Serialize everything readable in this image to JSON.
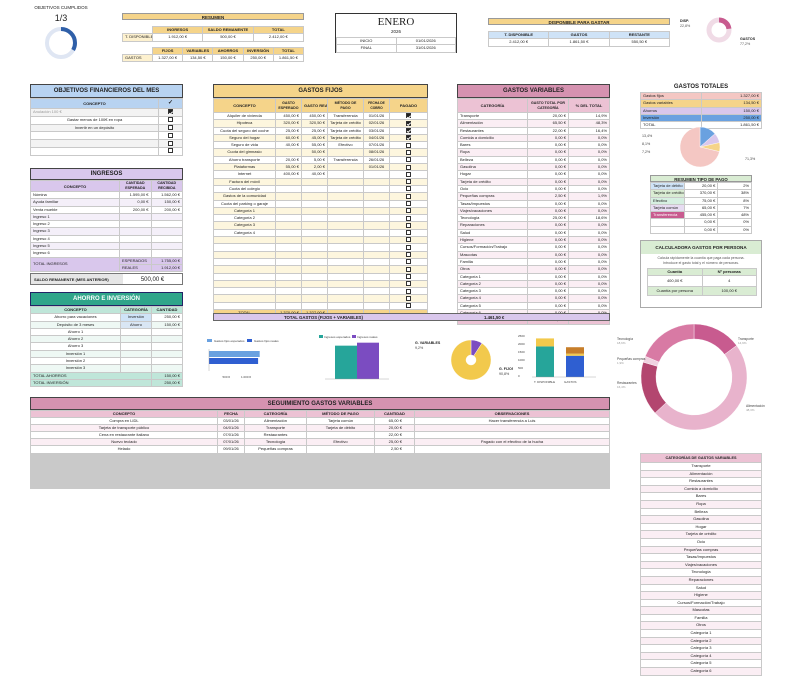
{
  "objetivos_cumplidos": {
    "label": "OBJETIVOS CUMPLIDOS",
    "value": "1/3",
    "ratio": 0.333
  },
  "resumen": {
    "title": "RESUMEN",
    "headers": [
      "INGRESOS",
      "SALDO REMANENTE",
      "TOTAL"
    ],
    "row_label": "T. DISPONIBLE",
    "row": [
      "1.912,00 €",
      "500,00 €",
      "2.412,00 €"
    ],
    "headers2": [
      "FIJOS",
      "VARIABLES",
      "AHORROS",
      "INVERSIÓN",
      "TOTAL"
    ],
    "row2_label": "GASTOS",
    "row2": [
      "1.327,00 €",
      "134,50 €",
      "150,00 €",
      "250,00 €",
      "1.861,50 €"
    ]
  },
  "mes": {
    "name": "ENERO",
    "year": "2026",
    "inicio_label": "INICIO",
    "inicio": "01/01/2026",
    "final_label": "FINAL",
    "final": "31/01/2026"
  },
  "disponible": {
    "title": "DISPONIBLE PARA GASTAR",
    "headers": [
      "T. DISPONIBLE",
      "GASTOS",
      "RESTANTE"
    ],
    "row": [
      "2.412,00 €",
      "1.861,50 €",
      "550,50 €"
    ]
  },
  "donut_small": {
    "disp_label": "DISP.",
    "disp_pct": "22,8%",
    "gastos_label": "GASTOS",
    "gastos_pct": "77,2%",
    "disp_frac": 0.228
  },
  "objetivos": {
    "title": "OBJETIVOS FINANCIEROS DEL MES",
    "col": "CONCEPTO",
    "check_header": "✓",
    "items": [
      {
        "text": "Anulación 100 €",
        "done": true,
        "muted": true
      },
      {
        "text": "Gastar menos de 100€ en ropa",
        "done": false
      },
      {
        "text": "Invertir en un depósito",
        "done": false
      },
      {
        "text": "",
        "done": false
      },
      {
        "text": "",
        "done": false
      },
      {
        "text": "",
        "done": false
      }
    ]
  },
  "ingresos": {
    "title": "INGRESOS",
    "headers": [
      "CONCEPTO",
      "CANTIDAD ESPERADA",
      "CANTIDAD RECIBIDA"
    ],
    "rows": [
      [
        "Nómina",
        "1.595,00 €",
        "1.562,00 €"
      ],
      [
        "Ayuda familiar",
        "0,00 €",
        "150,00 €"
      ],
      [
        "Venta mueble",
        "200,00 €",
        "200,00 €"
      ],
      [
        "Ingreso 1",
        "",
        ""
      ],
      [
        "Ingreso 2",
        "",
        ""
      ],
      [
        "Ingreso 3",
        "",
        ""
      ],
      [
        "Ingreso 4",
        "",
        ""
      ],
      [
        "Ingreso 5",
        "",
        ""
      ],
      [
        "Ingreso 6",
        "",
        ""
      ]
    ],
    "total_label": "TOTAL INGRESOS",
    "esperados_label": "ESPERADOS",
    "esperados": "1.755,00 €",
    "reales_label": "REALES",
    "reales": "1.912,00 €"
  },
  "saldo_remanente": {
    "label": "SALDO REMANENTE (MES ANTERIOR)",
    "value": "500,00 €"
  },
  "ahorro": {
    "title": "AHORRO E INVERSIÓN",
    "headers": [
      "CONCEPTO",
      "CATEGORÍA",
      "CANTIDAD"
    ],
    "rows": [
      [
        "Ahorro para vacaciones",
        "Inversión",
        "250,00 €"
      ],
      [
        "Depósito de 3 meses",
        "Ahorro",
        "150,00 €"
      ],
      [
        "Ahorro 1",
        "",
        ""
      ],
      [
        "Ahorro 2",
        "",
        ""
      ],
      [
        "Ahorro 3",
        "",
        ""
      ],
      [
        "Inversión 1",
        "",
        ""
      ],
      [
        "Inversión 2",
        "",
        ""
      ],
      [
        "Inversión 3",
        "",
        ""
      ]
    ],
    "total_ahorros_label": "TOTAL AHORROS",
    "total_ahorros": "150,00 €",
    "total_inversion_label": "TOTAL INVERSIÓN",
    "total_inversion": "250,00 €"
  },
  "fijos": {
    "title": "GASTOS FIJOS",
    "headers": [
      "CONCEPTO",
      "GASTO ESPERADO",
      "GASTO REAL",
      "MÉTODO DE PAGO",
      "FECHA DE COBRO",
      "PAGADO"
    ],
    "rows": [
      [
        "Alquiler de vivienda",
        "450,00 €",
        "450,00 €",
        "Transferencia",
        "01/01/26",
        true
      ],
      [
        "Hipoteca",
        "320,00 €",
        "320,50 €",
        "Tarjeta de crédito",
        "02/01/26",
        true
      ],
      [
        "Cuota del seguro del coche",
        "25,00 €",
        "25,00 €",
        "Tarjeta de crédito",
        "03/01/26",
        true
      ],
      [
        "Seguro del hogar",
        "60,00 €",
        "45,00 €",
        "Tarjeta de crédito",
        "04/01/26",
        true
      ],
      [
        "Seguro de vida",
        "40,00 €",
        "55,00 €",
        "Efectivo",
        "07/01/26",
        false
      ],
      [
        "Cuota del gimnasio",
        "",
        "50,00 €",
        "",
        "08/01/26",
        false
      ],
      [
        "Ahorro transporte",
        "20,00 €",
        "5,00 €",
        "Transferencia",
        "26/01/26",
        false
      ],
      [
        "Plataformas",
        "55,00 €",
        "2,00 €",
        "",
        "01/01/26",
        false
      ],
      [
        "Internet",
        "400,00 €",
        "40,00 €",
        "",
        "",
        false
      ],
      [
        "Factura del móvil",
        "",
        "",
        "",
        "",
        false
      ],
      [
        "Cuota del colegio",
        "",
        "",
        "",
        "",
        false
      ],
      [
        "Gastos de la comunidad",
        "",
        "",
        "",
        "",
        false
      ],
      [
        "Cuota del parking o garaje",
        "",
        "",
        "",
        "",
        false
      ],
      [
        "Categoría 1",
        "",
        "",
        "",
        "",
        false
      ],
      [
        "Categoría 2",
        "",
        "",
        "",
        "",
        false
      ],
      [
        "Categoría 3",
        "",
        "",
        "",
        "",
        false
      ],
      [
        "Categoría 4",
        "",
        "",
        "",
        "",
        false
      ],
      [
        "",
        "",
        "",
        "",
        "",
        false
      ],
      [
        "",
        "",
        "",
        "",
        "",
        false
      ],
      [
        "",
        "",
        "",
        "",
        "",
        false
      ],
      [
        "",
        "",
        "",
        "",
        "",
        false
      ],
      [
        "",
        "",
        "",
        "",
        "",
        false
      ],
      [
        "",
        "",
        "",
        "",
        "",
        false
      ],
      [
        "",
        "",
        "",
        "",
        "",
        false
      ],
      [
        "",
        "",
        "",
        "",
        "",
        false
      ],
      [
        "",
        "",
        "",
        "",
        "",
        false
      ],
      [
        "",
        "",
        "",
        "",
        "",
        false
      ]
    ],
    "total_label": "TOTAL",
    "total_esperado": "1.370,00 €",
    "total_real": "1.327,00 €"
  },
  "variables": {
    "title": "GASTOS VARIABLES",
    "headers": [
      "CATEGORÍA",
      "GASTO TOTAL POR CATEGORÍA",
      "% DEL TOTAL"
    ],
    "rows": [
      [
        "Transporte",
        "20,00 €",
        "14,9%"
      ],
      [
        "Alimentación",
        "65,50 €",
        "48,3%"
      ],
      [
        "Restaurantes",
        "22,00 €",
        "16,4%"
      ],
      [
        "Comida a domicilio",
        "0,00 €",
        "0,0%"
      ],
      [
        "Bares",
        "0,00 €",
        "0,0%"
      ],
      [
        "Ropa",
        "0,00 €",
        "0,0%"
      ],
      [
        "Belleza",
        "0,00 €",
        "0,0%"
      ],
      [
        "Gasolina",
        "0,00 €",
        "0,0%"
      ],
      [
        "Hogar",
        "0,00 €",
        "0,0%"
      ],
      [
        "Tarjeta de crédito",
        "0,00 €",
        "0,0%"
      ],
      [
        "Ocio",
        "0,00 €",
        "0,0%"
      ],
      [
        "Pequeñas compras",
        "2,50 €",
        "1,9%"
      ],
      [
        "Tasas/Impuestos",
        "0,00 €",
        "0,0%"
      ],
      [
        "Viajes/vacaciones",
        "0,00 €",
        "0,0%"
      ],
      [
        "Tecnología",
        "25,00 €",
        "18,6%"
      ],
      [
        "Reparaciones",
        "0,00 €",
        "0,0%"
      ],
      [
        "Salud",
        "0,00 €",
        "0,0%"
      ],
      [
        "Higiene",
        "0,00 €",
        "0,0%"
      ],
      [
        "Cursos/Formación/Trabajo",
        "0,00 €",
        "0,0%"
      ],
      [
        "Mascotas",
        "0,00 €",
        "0,0%"
      ],
      [
        "Familia",
        "0,00 €",
        "0,0%"
      ],
      [
        "Otros",
        "0,00 €",
        "0,0%"
      ],
      [
        "Categoría 1",
        "0,00 €",
        "0,0%"
      ],
      [
        "Categoría 2",
        "0,00 €",
        "0,0%"
      ],
      [
        "Categoría 3",
        "0,00 €",
        "0,0%"
      ],
      [
        "Categoría 4",
        "0,00 €",
        "0,0%"
      ],
      [
        "Categoría 5",
        "0,00 €",
        "0,0%"
      ],
      [
        "Categoría 6",
        "0,00 €",
        "0,0%"
      ]
    ],
    "total_label": "TOTAL",
    "total": "134,50 €"
  },
  "total_gastos": {
    "label": "TOTAL GASTOS (FIJOS + VARIABLES)",
    "value": "1.461,50 €"
  },
  "gastos_totales": {
    "title": "GASTOS TOTALES",
    "rows": [
      [
        "Gastos fijos",
        "1.327,00 €",
        "#f4c7c3"
      ],
      [
        "Gastos variables",
        "134,50 €",
        "#f5d48a"
      ],
      [
        "Ahorros",
        "150,00 €",
        "#d9c7ec"
      ],
      [
        "Inversión",
        "250,00 €",
        "#6aa1e0"
      ]
    ],
    "total_label": "TOTAL",
    "total": "1.861,50 €",
    "pie_labels": [
      "13,4%",
      "8,1%",
      "7,2%",
      "71,3%"
    ]
  },
  "tipo_pago": {
    "title": "RESUMEN TIPO DE PAGO",
    "rows": [
      [
        "Tarjeta de débito",
        "20,00 €",
        "2%",
        "#cfe3f7"
      ],
      [
        "Tarjeta de crédito",
        "370,00 €",
        "38%",
        "#d9ecd3"
      ],
      [
        "Efectivo",
        "75,00 €",
        "8%",
        "#d6efe1"
      ],
      [
        "Tarjeta común",
        "65,00 €",
        "7%",
        "#e7dcf2"
      ],
      [
        "Transferencia",
        "455,00 €",
        "48%",
        "#c85b8f"
      ],
      [
        "",
        "0,00 €",
        "0%",
        "#fff"
      ],
      [
        "",
        "0,00 €",
        "0%",
        "#fff"
      ]
    ]
  },
  "calculadora": {
    "title": "CALCULADORA GASTOS POR PERSONA",
    "desc": "Calcula rápidamente la cuantía que paga cada persona. Introduce el gasto total y el número de personas.",
    "headers": [
      "Cuantía",
      "Nº personas"
    ],
    "row": [
      "400,00 €",
      "4"
    ],
    "result_label": "Cuantía por persona",
    "result": "100,00 €"
  },
  "chart_data": [
    {
      "type": "bar",
      "series": [
        {
          "name": "Gastos fijos esperados",
          "values": [
            1370
          ]
        },
        {
          "name": "Gastos fijos reales",
          "values": [
            1327
          ]
        }
      ],
      "ticks": [
        "500 €",
        "1.000 €"
      ],
      "orientation": "horizontal"
    },
    {
      "type": "bar",
      "series": [
        {
          "name": "Ingresos esperados",
          "values": [
            1755
          ]
        },
        {
          "name": "Ingresos reales",
          "values": [
            1912
          ]
        }
      ]
    },
    {
      "type": "pie",
      "values": [
        [
          134.5,
          9.2
        ],
        [
          1327,
          90.8
        ]
      ],
      "labels": [
        "G. VARIABLES",
        "G. FIJOS"
      ],
      "pct": [
        "9,2%",
        "90,8%"
      ]
    },
    {
      "type": "bar",
      "categories": [
        "T. DISPONIBLE",
        "GASTOS"
      ],
      "ticks": [
        "2500",
        "2000",
        "1500",
        "1000",
        "500",
        "0"
      ],
      "ylim": [
        0,
        2500
      ],
      "series": [
        {
          "name": "Ingresos",
          "values": [
            1912,
            0
          ],
          "color": "#26a59a"
        },
        {
          "name": "Saldo",
          "values": [
            500,
            0
          ],
          "color": "#f2c94c"
        },
        {
          "name": "Fijos",
          "values": [
            0,
            1327
          ],
          "color": "#2f5fd1"
        },
        {
          "name": "Variables",
          "values": [
            0,
            134.5
          ],
          "color": "#f2c94c"
        },
        {
          "name": "Ahorro/Inv",
          "values": [
            0,
            400
          ],
          "color": "#c77e2a"
        }
      ]
    },
    {
      "type": "pie",
      "donut": true,
      "labels": [
        "Transporte",
        "Alimentación",
        "Restaurantes",
        "Pequeñas compras",
        "Tecnología"
      ],
      "values": [
        14.9,
        48.3,
        16.4,
        1.9,
        18.6
      ],
      "pct": [
        "14,9%",
        "48,3%",
        "16,4%",
        "1,9%",
        "18,6%"
      ]
    }
  ],
  "seguimiento": {
    "title": "SEGUIMIENTO GASTOS VARIABLES",
    "headers": [
      "CONCEPTO",
      "FECHA",
      "CATEGORÍA",
      "MÉTODO DE PAGO",
      "CANTIDAD",
      "OBSERVACIONES"
    ],
    "rows": [
      [
        "Compra en LIDL",
        "03/01/26",
        "Alimentación",
        "Tarjeta común",
        "65,00 €",
        "Hacer transferencia a Luis"
      ],
      [
        "Tarjeta de transporte público",
        "04/01/26",
        "Transporte",
        "Tarjeta de débito",
        "20,00 €",
        ""
      ],
      [
        "Cena en restaurante italiano",
        "07/01/26",
        "Restaurantes",
        "",
        "22,00 €",
        ""
      ],
      [
        "Nuevo teclado",
        "07/01/26",
        "Tecnología",
        "Efectivo",
        "25,00 €",
        "Pagado con el efectivo de la hucha"
      ],
      [
        "Helado",
        "09/01/26",
        "Pequeñas compras",
        "",
        "2,50 €",
        ""
      ]
    ]
  },
  "categorias": {
    "title": "CATEGORÍAS DE GASTOS VARIABLES",
    "items": [
      "Transporte",
      "Alimentación",
      "Restaurantes",
      "Comida a domicilio",
      "Bares",
      "Ropa",
      "Belleza",
      "Gasolina",
      "Hogar",
      "Tarjeta de crédito",
      "Ocio",
      "Pequeñas compras",
      "Tasas/Impuestos",
      "Viajes/vacaciones",
      "Tecnología",
      "Reparaciones",
      "Salud",
      "Higiene",
      "Cursos/Formación/Trabajo",
      "Mascotas",
      "Familia",
      "Otros",
      "Categoría 1",
      "Categoría 2",
      "Categoría 3",
      "Categoría 4",
      "Categoría 5",
      "Categoría 6"
    ]
  }
}
